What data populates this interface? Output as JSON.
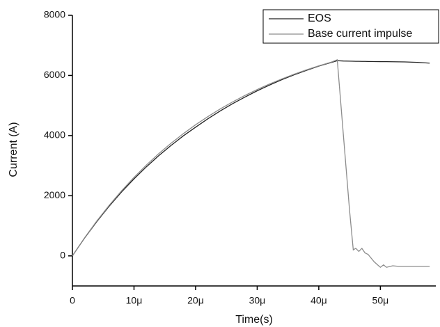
{
  "chart_data": {
    "type": "line",
    "x_label": "Time(s)",
    "y_label": "Current (A)",
    "x": [
      0,
      2e-06,
      4e-06,
      6e-06,
      8e-06,
      1e-05,
      1.2e-05,
      1.4e-05,
      1.6e-05,
      1.8e-05,
      2e-05,
      2.2e-05,
      2.4e-05,
      2.6e-05,
      2.8e-05,
      3e-05,
      3.2e-05,
      3.4e-05,
      3.6e-05,
      3.8e-05,
      4e-05,
      4.2e-05,
      4.3e-05,
      4.4e-05,
      4.5e-05,
      4.56e-05,
      4.6e-05,
      4.65e-05,
      4.7e-05,
      4.75e-05,
      4.8e-05,
      4.9e-05,
      5e-05,
      5.05e-05,
      5.1e-05,
      5.2e-05,
      5.3e-05,
      5.4e-05,
      5.6e-05,
      5.8e-05
    ],
    "series": [
      {
        "name": "EOS",
        "color": "#222222",
        "values": [
          0,
          600,
          1150,
          1660,
          2130,
          2560,
          2960,
          3330,
          3670,
          3990,
          4280,
          4560,
          4820,
          5060,
          5280,
          5490,
          5680,
          5860,
          6020,
          6170,
          6310,
          6430,
          6490,
          6480,
          6475,
          6473,
          6470,
          6470,
          6468,
          6467,
          6465,
          6462,
          6460,
          6459,
          6458,
          6455,
          6452,
          6450,
          6435,
          6410
        ]
      },
      {
        "name": "Base current impulse",
        "color": "#8c8c8c",
        "values": [
          0,
          609,
          1171,
          1689,
          2168,
          2610,
          3018,
          3395,
          3742,
          4063,
          4360,
          4633,
          4886,
          5118,
          5334,
          5532,
          5716,
          5885,
          6041,
          6186,
          6319,
          6441,
          6520,
          4000,
          1500,
          200,
          250,
          150,
          250,
          100,
          50,
          -200,
          -380,
          -300,
          -380,
          -330,
          -350,
          -350,
          -350,
          -350
        ]
      }
    ],
    "xlim": [
      0,
      5.9e-05
    ],
    "ylim": [
      -1000,
      8000
    ],
    "xticks": [
      {
        "value": 0,
        "label": "0"
      },
      {
        "value": 1e-05,
        "label": "10μ"
      },
      {
        "value": 2e-05,
        "label": "20μ"
      },
      {
        "value": 3e-05,
        "label": "30μ"
      },
      {
        "value": 4e-05,
        "label": "40μ"
      },
      {
        "value": 5e-05,
        "label": "50μ"
      }
    ],
    "yticks": [
      0,
      2000,
      4000,
      6000,
      8000
    ],
    "legend": "top-right",
    "grid": false
  }
}
